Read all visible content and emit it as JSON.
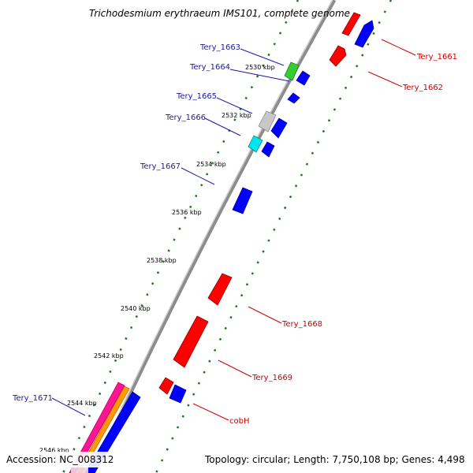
{
  "title": "Trichodesmium erythraeum IMS101, complete genome",
  "accession": "Accession: NC_008312",
  "topology": "Topology: circular; Length: 7,750,108 bp; Genes: 4,498",
  "kbp_labels": [
    "2530 kbp",
    "2532 kbp",
    "2534 kbp",
    "2536 kbp",
    "2538 kbp",
    "2540 kbp",
    "2542 kbp",
    "2544 kbp",
    "2546 kbp"
  ],
  "genes_left": [
    "Tery_1663",
    "Tery_1664",
    "Tery_1665",
    "Tery_1666",
    "Tery_1667",
    "Tery_1671"
  ],
  "genes_right": [
    "Tery_1661",
    "Tery_1662",
    "Tery_1668",
    "Tery_1669",
    "cobH"
  ],
  "colors": {
    "reverse_label": "#1a1aa6",
    "forward_label": "#cc0000",
    "backbone": "#8c8c8c",
    "dots": "#1a7a1a",
    "red": "#ff0000",
    "blue": "#0000ff",
    "green": "#33cc33",
    "gray": "#c8c8c8",
    "cyan": "#00e5ee",
    "magenta": "#ff1493",
    "orange": "#ff9900"
  }
}
